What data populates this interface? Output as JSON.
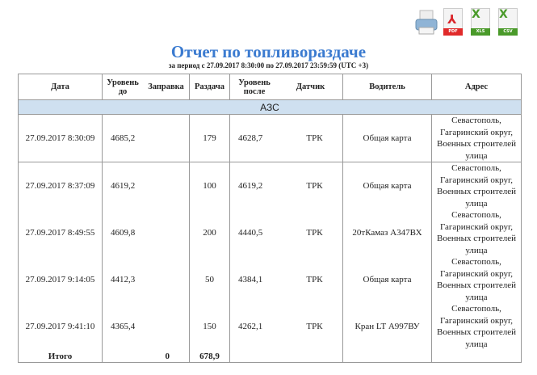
{
  "toolbar": {
    "icons": [
      "printer-icon",
      "pdf-icon",
      "xls-icon",
      "csv-icon"
    ],
    "pdf_label": "PDF",
    "xls_label": "XLS",
    "csv_label": "CSV"
  },
  "title": "Отчет по топливораздаче",
  "period": "за период с 27.09.2017 8:30:00 по 27.09.2017 23:59:59 (UTC +3)",
  "colors": {
    "title": "#3b7bd0",
    "group_bg": "#cfe0f0"
  },
  "headers": {
    "date": "Дата",
    "level_before": "Уровень до",
    "refuel": "Заправка",
    "dispense": "Раздача",
    "level_after": "Уровень после",
    "sensor": "Датчик",
    "driver": "Водитель",
    "address": "Адрес"
  },
  "group": "АЗС",
  "rows": [
    {
      "date": "27.09.2017 8:30:09",
      "level_before": "4685,2",
      "refuel": "",
      "dispense": "179",
      "level_after": "4628,7",
      "sensor": "ТРК",
      "driver": "Общая карта",
      "address": "Севастополь, Гагаринский округ, Военных строителей улица"
    },
    {
      "date": "27.09.2017 8:37:09",
      "level_before": "4619,2",
      "refuel": "",
      "dispense": "100",
      "level_after": "4619,2",
      "sensor": "ТРК",
      "driver": "Общая карта",
      "address": "Севастополь, Гагаринский округ, Военных строителей улица"
    },
    {
      "date": "27.09.2017 8:49:55",
      "level_before": "4609,8",
      "refuel": "",
      "dispense": "200",
      "level_after": "4440,5",
      "sensor": "ТРК",
      "driver": "20тКамаз А347ВХ",
      "address": "Севастополь, Гагаринский округ, Военных строителей улица"
    },
    {
      "date": "27.09.2017 9:14:05",
      "level_before": "4412,3",
      "refuel": "",
      "dispense": "50",
      "level_after": "4384,1",
      "sensor": "ТРК",
      "driver": "Общая карта",
      "address": "Севастополь, Гагаринский округ, Военных строителей улица"
    },
    {
      "date": "27.09.2017 9:41:10",
      "level_before": "4365,4",
      "refuel": "",
      "dispense": "150",
      "level_after": "4262,1",
      "sensor": "ТРК",
      "driver": "Кран LT А997ВУ",
      "address": "Севастополь, Гагаринский округ, Военных строителей улица"
    }
  ],
  "total": {
    "label": "Итого",
    "refuel": "0",
    "dispense": "678,9"
  }
}
